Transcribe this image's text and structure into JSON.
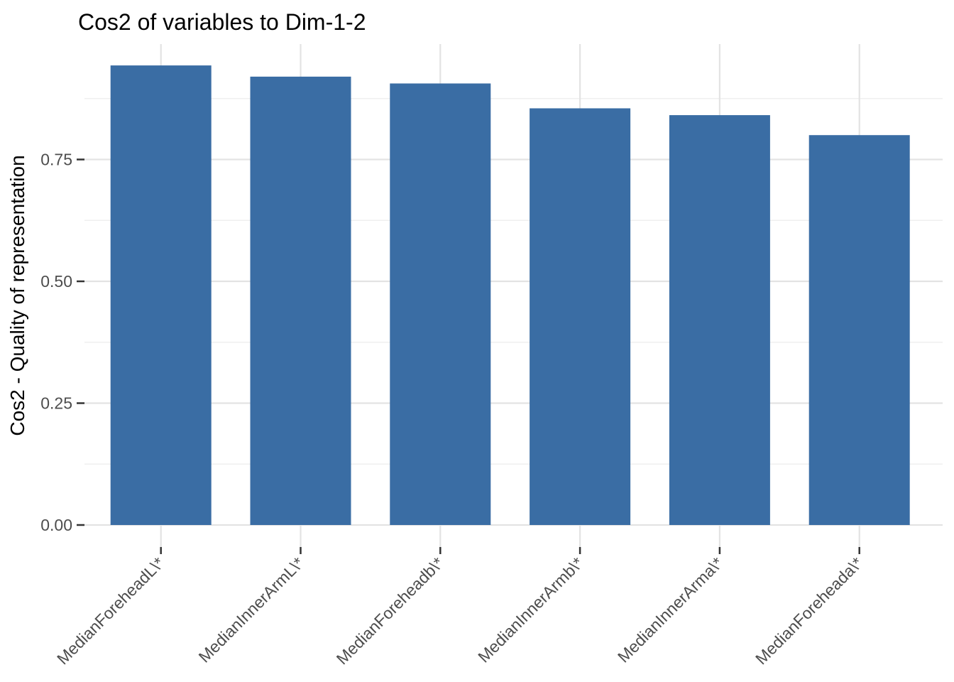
{
  "chart_data": {
    "type": "bar",
    "title": "Cos2 of variables to Dim-1-2",
    "xlabel": "",
    "ylabel": "Cos2 - Quality of representation",
    "categories": [
      "MedianForeheadL\\*",
      "MedianInnerArmL\\*",
      "MedianForeheadb\\*",
      "MedianInnerArmb\\*",
      "MedianInnerArma\\*",
      "MedianForeheada\\*"
    ],
    "values": [
      0.943,
      0.92,
      0.906,
      0.855,
      0.841,
      0.8
    ],
    "ylim": [
      0,
      0.99
    ],
    "yticks": [
      0,
      0.25,
      0.5,
      0.75
    ],
    "ytick_labels": [
      "0.00",
      "0.25",
      "0.50",
      "0.75"
    ],
    "minor_yticks": [
      0.125,
      0.375,
      0.625,
      0.875
    ],
    "legend": "none",
    "grid": "major and minor horizontal, major vertical at bar centers",
    "bar_color": "#3A6DA4",
    "grid_major_color": "#E3E3E3",
    "grid_minor_color": "#EFEFEF",
    "tick_mark_color": "#333333",
    "tick_label_color": "#4D4D4D",
    "title_color": "#000000",
    "background_color": "#FFFFFF"
  }
}
